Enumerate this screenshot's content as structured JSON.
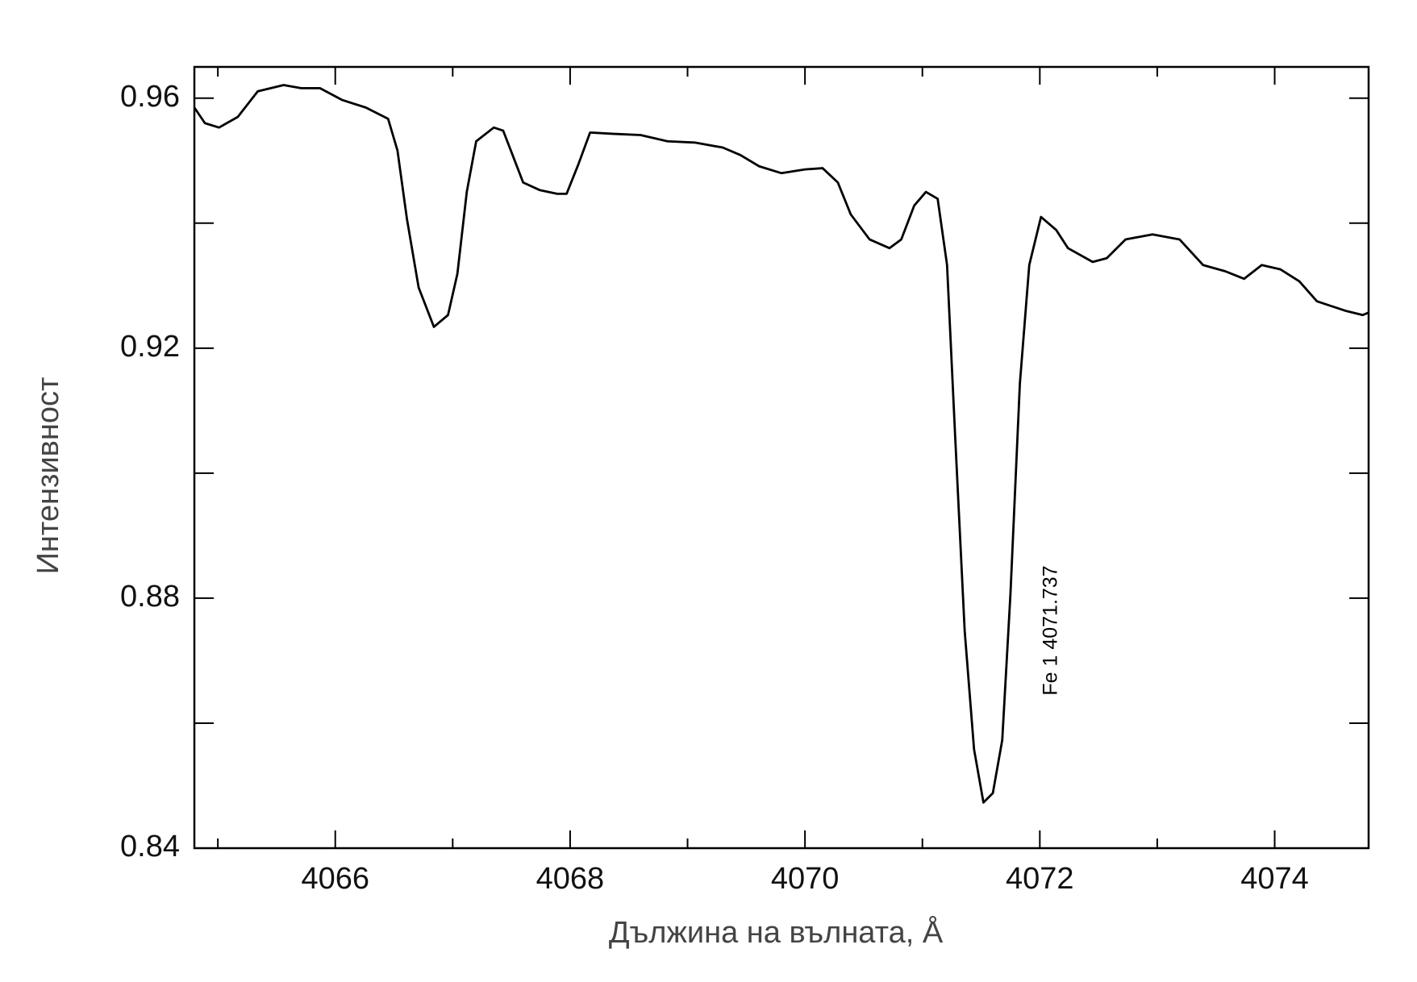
{
  "chart_data": {
    "type": "line",
    "xlabel": "Дължина на вълната, Å",
    "ylabel": "Интензивност",
    "annotation": "Fe 1 4071.737",
    "xlim": [
      4064.8,
      4074.8
    ],
    "ylim": [
      0.84,
      0.965
    ],
    "xticks": [
      4066,
      4068,
      4070,
      4072,
      4074
    ],
    "yticks": [
      0.84,
      0.88,
      0.92,
      0.96
    ],
    "xminor": [
      4065,
      4067,
      4069,
      4071,
      4073
    ],
    "yminor": [
      0.86,
      0.9,
      0.94
    ],
    "series": [
      {
        "color": "#000000",
        "x": [
          4064.8,
          4064.89,
          4065.01,
          4065.17,
          4065.34,
          4065.56,
          4065.71,
          4065.87,
          4066.06,
          4066.26,
          4066.45,
          4066.53,
          4066.61,
          4066.71,
          4066.84,
          4066.96,
          4067.04,
          4067.12,
          4067.2,
          4067.35,
          4067.43,
          4067.51,
          4067.6,
          4067.74,
          4067.89,
          4067.97,
          4068.07,
          4068.17,
          4068.36,
          4068.6,
          4068.83,
          4069.06,
          4069.3,
          4069.45,
          4069.61,
          4069.8,
          4070.0,
          4070.15,
          4070.28,
          4070.39,
          4070.55,
          4070.72,
          4070.82,
          4070.93,
          4071.03,
          4071.13,
          4071.21,
          4071.28,
          4071.36,
          4071.44,
          4071.52,
          4071.6,
          4071.68,
          4071.75,
          4071.83,
          4071.91,
          4072.01,
          4072.14,
          4072.24,
          4072.45,
          4072.57,
          4072.73,
          4072.96,
          4073.19,
          4073.39,
          4073.58,
          4073.74,
          4073.89,
          4074.05,
          4074.21,
          4074.36,
          4074.6,
          4074.75,
          4074.8
        ],
        "values": [
          0.9585,
          0.956,
          0.9553,
          0.957,
          0.9611,
          0.9621,
          0.9616,
          0.9616,
          0.9597,
          0.9585,
          0.9567,
          0.9516,
          0.9407,
          0.9297,
          0.9234,
          0.9253,
          0.9319,
          0.945,
          0.9531,
          0.9553,
          0.9548,
          0.9509,
          0.9465,
          0.9453,
          0.9447,
          0.9447,
          0.9494,
          0.9545,
          0.9543,
          0.9541,
          0.9531,
          0.9529,
          0.9521,
          0.9509,
          0.9491,
          0.948,
          0.9486,
          0.9488,
          0.9465,
          0.9414,
          0.9374,
          0.936,
          0.9374,
          0.9428,
          0.945,
          0.9439,
          0.9333,
          0.9055,
          0.8748,
          0.8558,
          0.8473,
          0.8488,
          0.8573,
          0.8807,
          0.9143,
          0.9333,
          0.941,
          0.9389,
          0.936,
          0.9338,
          0.9344,
          0.9374,
          0.9382,
          0.9374,
          0.9333,
          0.9323,
          0.9311,
          0.9333,
          0.9326,
          0.9307,
          0.9275,
          0.926,
          0.9253,
          0.9257
        ]
      }
    ]
  }
}
